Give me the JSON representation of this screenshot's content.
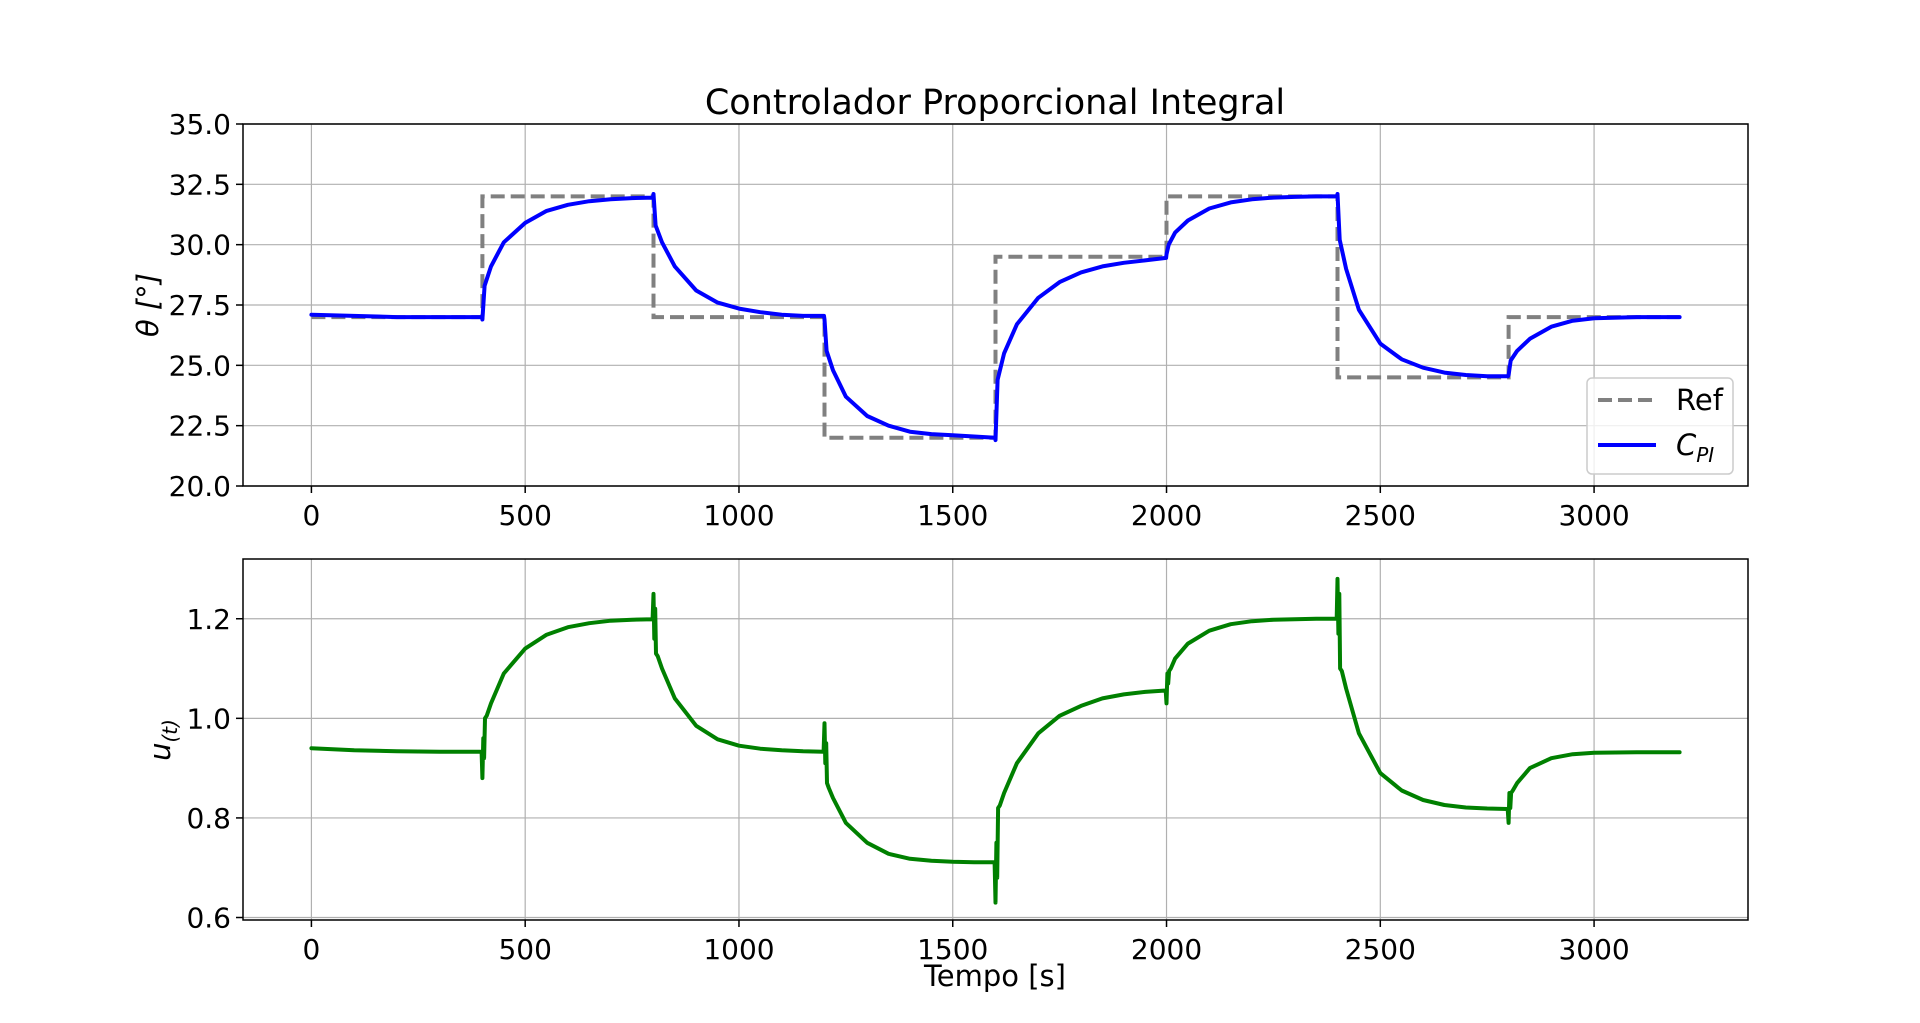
{
  "chart_data": [
    {
      "type": "line",
      "title": "Controlador Proporcional Integral",
      "xlabel": "",
      "ylabel": "θ [°]",
      "xlim": [
        -160,
        3360
      ],
      "ylim": [
        20.0,
        35.0
      ],
      "xticks": [
        0,
        500,
        1000,
        1500,
        2000,
        2500,
        3000
      ],
      "yticks": [
        20.0,
        22.5,
        25.0,
        27.5,
        30.0,
        32.5,
        35.0
      ],
      "xtick_labels": [
        "0",
        "500",
        "1000",
        "1500",
        "2000",
        "2500",
        "3000"
      ],
      "ytick_labels": [
        "20.0",
        "22.5",
        "25.0",
        "27.5",
        "30.0",
        "32.5",
        "35.0"
      ],
      "grid": true,
      "legend": "lower-right",
      "series": [
        {
          "name": "Ref",
          "style": "dashed",
          "color": "#808080",
          "x": [
            0,
            400,
            400,
            800,
            800,
            1200,
            1200,
            1600,
            1600,
            2000,
            2000,
            2400,
            2400,
            2800,
            2800,
            3200
          ],
          "y": [
            27.0,
            27.0,
            32.0,
            32.0,
            27.0,
            27.0,
            22.0,
            22.0,
            29.5,
            29.5,
            32.0,
            32.0,
            24.5,
            24.5,
            27.0,
            27.0
          ]
        },
        {
          "name": "C",
          "name_subscript": "PI",
          "style": "solid",
          "color": "#0000ff",
          "x": [
            0,
            200,
            399,
            400,
            405,
            420,
            450,
            500,
            550,
            600,
            650,
            700,
            750,
            799,
            800,
            805,
            820,
            850,
            900,
            950,
            1000,
            1050,
            1100,
            1150,
            1199,
            1200,
            1205,
            1220,
            1250,
            1300,
            1350,
            1400,
            1450,
            1500,
            1550,
            1599,
            1600,
            1605,
            1620,
            1650,
            1700,
            1750,
            1800,
            1850,
            1900,
            1950,
            1999,
            2000,
            2005,
            2020,
            2050,
            2100,
            2150,
            2200,
            2250,
            2300,
            2350,
            2399,
            2400,
            2405,
            2420,
            2450,
            2500,
            2550,
            2600,
            2650,
            2700,
            2750,
            2799,
            2800,
            2805,
            2820,
            2850,
            2900,
            2950,
            3000,
            3100,
            3200
          ],
          "y": [
            27.1,
            27.0,
            27.0,
            26.9,
            28.3,
            29.1,
            30.1,
            30.9,
            31.4,
            31.65,
            31.8,
            31.88,
            31.93,
            31.95,
            32.1,
            30.8,
            30.1,
            29.1,
            28.1,
            27.6,
            27.35,
            27.2,
            27.1,
            27.05,
            27.05,
            26.9,
            25.6,
            24.8,
            23.7,
            22.9,
            22.5,
            22.25,
            22.15,
            22.1,
            22.05,
            22.0,
            21.9,
            24.4,
            25.5,
            26.7,
            27.8,
            28.45,
            28.85,
            29.1,
            29.25,
            29.35,
            29.45,
            29.6,
            30.0,
            30.5,
            31.0,
            31.5,
            31.75,
            31.88,
            31.95,
            31.98,
            32.0,
            32.0,
            32.1,
            30.2,
            29.0,
            27.3,
            25.9,
            25.25,
            24.9,
            24.7,
            24.6,
            24.55,
            24.55,
            24.6,
            25.2,
            25.6,
            26.1,
            26.6,
            26.85,
            26.95,
            27.0,
            27.0
          ]
        }
      ]
    },
    {
      "type": "line",
      "title": "",
      "xlabel": "Tempo [s]",
      "ylabel": "u",
      "ylabel_subscript": "(t)",
      "xlim": [
        -160,
        3360
      ],
      "ylim": [
        0.595,
        1.32
      ],
      "xticks": [
        0,
        500,
        1000,
        1500,
        2000,
        2500,
        3000
      ],
      "yticks": [
        0.6,
        0.8,
        1.0,
        1.2
      ],
      "xtick_labels": [
        "0",
        "500",
        "1000",
        "1500",
        "2000",
        "2500",
        "3000"
      ],
      "ytick_labels": [
        "0.6",
        "0.8",
        "1.0",
        "1.2"
      ],
      "grid": true,
      "legend": "none",
      "series": [
        {
          "name": "",
          "style": "solid",
          "color": "#008000",
          "x": [
            0,
            100,
            200,
            300,
            398,
            400,
            402,
            404,
            406,
            410,
            420,
            450,
            500,
            550,
            600,
            650,
            700,
            750,
            798,
            800,
            802,
            804,
            806,
            810,
            820,
            850,
            900,
            950,
            1000,
            1050,
            1100,
            1150,
            1198,
            1200,
            1202,
            1204,
            1206,
            1210,
            1220,
            1250,
            1300,
            1350,
            1400,
            1450,
            1500,
            1550,
            1598,
            1600,
            1602,
            1604,
            1606,
            1610,
            1620,
            1650,
            1700,
            1750,
            1800,
            1850,
            1900,
            1950,
            1998,
            2000,
            2002,
            2004,
            2006,
            2010,
            2020,
            2050,
            2100,
            2150,
            2200,
            2250,
            2300,
            2350,
            2398,
            2400,
            2402,
            2404,
            2406,
            2410,
            2420,
            2450,
            2500,
            2550,
            2600,
            2650,
            2700,
            2750,
            2798,
            2800,
            2802,
            2804,
            2806,
            2810,
            2820,
            2850,
            2900,
            2950,
            3000,
            3100,
            3200
          ],
          "y": [
            0.94,
            0.936,
            0.934,
            0.933,
            0.933,
            0.88,
            0.96,
            0.92,
            1.0,
            1.005,
            1.03,
            1.09,
            1.14,
            1.168,
            1.183,
            1.191,
            1.196,
            1.198,
            1.199,
            1.25,
            1.16,
            1.22,
            1.13,
            1.125,
            1.1,
            1.04,
            0.985,
            0.958,
            0.945,
            0.939,
            0.936,
            0.934,
            0.933,
            0.99,
            0.91,
            0.95,
            0.87,
            0.86,
            0.84,
            0.79,
            0.75,
            0.728,
            0.718,
            0.714,
            0.712,
            0.711,
            0.711,
            0.63,
            0.75,
            0.68,
            0.82,
            0.825,
            0.85,
            0.91,
            0.97,
            1.005,
            1.025,
            1.04,
            1.048,
            1.053,
            1.056,
            1.03,
            1.09,
            1.07,
            1.095,
            1.1,
            1.12,
            1.15,
            1.176,
            1.189,
            1.195,
            1.198,
            1.199,
            1.2,
            1.2,
            1.28,
            1.17,
            1.25,
            1.1,
            1.095,
            1.06,
            0.97,
            0.89,
            0.855,
            0.836,
            0.826,
            0.821,
            0.819,
            0.818,
            0.79,
            0.85,
            0.82,
            0.85,
            0.855,
            0.87,
            0.9,
            0.92,
            0.928,
            0.931,
            0.932,
            0.932
          ]
        }
      ]
    }
  ]
}
